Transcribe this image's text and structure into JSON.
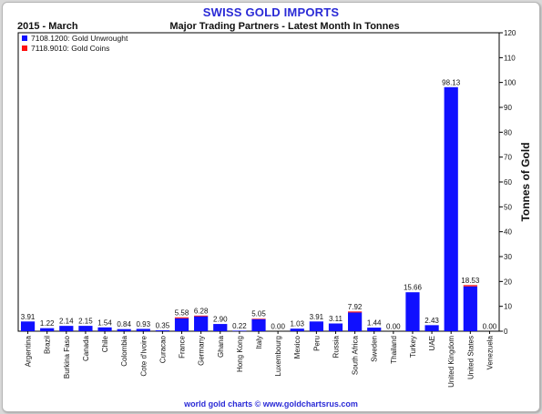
{
  "header": {
    "title": "SWISS GOLD IMPORTS",
    "period": "2015 - March",
    "subtitle": "Major Trading Partners - Latest Month In Tonnes"
  },
  "footer": "world gold charts © www.goldchartsrus.com",
  "colors": {
    "unwrought": "#1010ff",
    "coins": "#ff1010",
    "title": "#2a2ad6"
  },
  "chart_data": {
    "type": "bar",
    "stacked": true,
    "ylabel": "Tonnes of Gold",
    "ylim": [
      0,
      120
    ],
    "yticks": [
      0,
      10,
      20,
      30,
      40,
      50,
      60,
      70,
      80,
      90,
      100,
      110,
      120
    ],
    "y_axis_side": "right",
    "grid": false,
    "legend_position": "top-left",
    "categories": [
      "Argentina",
      "Brazil",
      "Burkina Faso",
      "Canada",
      "Chile",
      "Colombia",
      "Cote d'Ivoire",
      "Curacao",
      "France",
      "Germany",
      "Ghana",
      "Hong Kong",
      "Italy",
      "Luxembourg",
      "Mexico",
      "Peru",
      "Russia",
      "South Africa",
      "Sweden",
      "Thailand",
      "Turkey",
      "UAE",
      "United Kingdom",
      "United States",
      "Venezuela"
    ],
    "series": [
      {
        "name": "7108.1200: Gold Unwrought",
        "color": "#1010ff",
        "values": [
          3.91,
          1.22,
          2.14,
          2.15,
          1.54,
          0.84,
          0.93,
          0.35,
          5.18,
          5.98,
          2.9,
          0.22,
          4.85,
          0,
          1.03,
          3.91,
          3.11,
          7.52,
          1.44,
          0,
          15.66,
          2.43,
          98.13,
          18.03,
          0
        ]
      },
      {
        "name": "7118.9010: Gold Coins",
        "color": "#ff1010",
        "values": [
          0,
          0,
          0,
          0,
          0,
          0,
          0,
          0,
          0.4,
          0.3,
          0,
          0,
          0.2,
          0,
          0,
          0,
          0,
          0.4,
          0,
          0,
          0,
          0,
          0,
          0.5,
          0
        ]
      }
    ],
    "totals": [
      "3.91",
      "1.22",
      "2.14",
      "2.15",
      "1.54",
      "0.84",
      "0.93",
      "0.35",
      "5.58",
      "6.28",
      "2.90",
      "0.22",
      "5.05",
      "0.00",
      "1.03",
      "3.91",
      "3.11",
      "7.92",
      "1.44",
      "0.00",
      "15.66",
      "2.43",
      "98.13",
      "18.53",
      "0.00"
    ]
  }
}
